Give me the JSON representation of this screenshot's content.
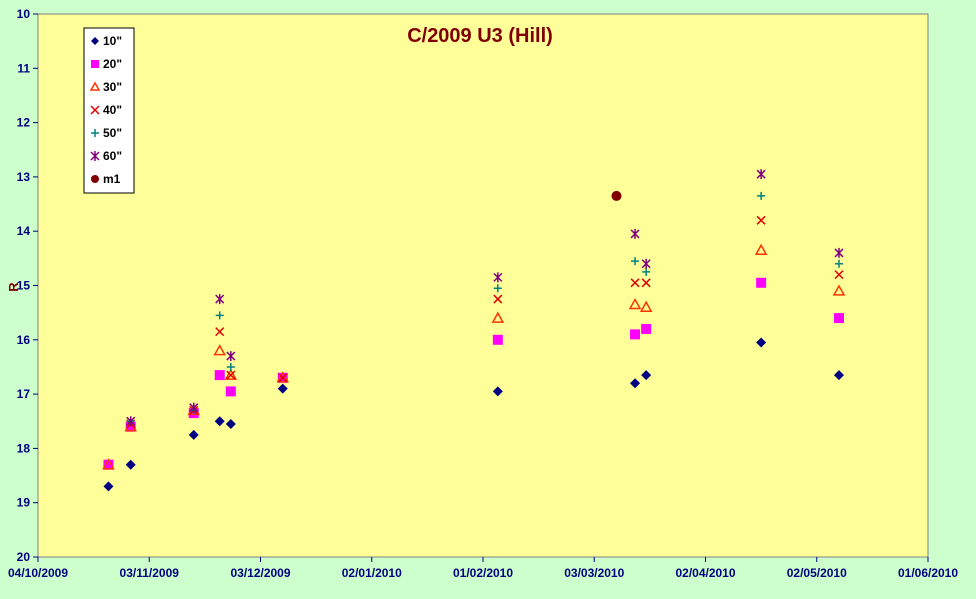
{
  "chart_data": {
    "type": "scatter",
    "title": "C/2009 U3 (Hill)",
    "xlabel": "",
    "ylabel": "R",
    "ylim": [
      10,
      20
    ],
    "y_inverted": true,
    "y_ticks": [
      "10",
      "11",
      "12",
      "13",
      "14",
      "15",
      "16",
      "17",
      "18",
      "19",
      "20"
    ],
    "x_ticks": [
      "04/10/2009",
      "03/11/2009",
      "03/12/2009",
      "02/01/2010",
      "01/02/2010",
      "03/03/2010",
      "02/04/2010",
      "02/05/2010",
      "01/06/2010"
    ],
    "xlim": [
      "2009-10-04",
      "2010-06-01"
    ],
    "legend_position": "top-left",
    "grid": false,
    "plot_background": "#ffff99",
    "page_background": "#ccffcc",
    "series": [
      {
        "name": "10\"",
        "marker": "diamond",
        "color": "#000080",
        "points": [
          [
            "2009-10-23",
            18.7
          ],
          [
            "2009-10-29",
            18.3
          ],
          [
            "2009-11-15",
            17.75
          ],
          [
            "2009-11-22",
            17.5
          ],
          [
            "2009-11-25",
            17.55
          ],
          [
            "2009-12-09",
            16.9
          ],
          [
            "2010-02-05",
            16.95
          ],
          [
            "2010-03-14",
            16.8
          ],
          [
            "2010-03-17",
            16.65
          ],
          [
            "2010-04-17",
            16.05
          ],
          [
            "2010-05-08",
            16.65
          ]
        ]
      },
      {
        "name": "20\"",
        "marker": "square",
        "color": "#ff00ff",
        "points": [
          [
            "2009-10-23",
            18.3
          ],
          [
            "2009-10-29",
            17.6
          ],
          [
            "2009-11-15",
            17.35
          ],
          [
            "2009-11-22",
            16.65
          ],
          [
            "2009-11-25",
            16.95
          ],
          [
            "2009-12-09",
            16.7
          ],
          [
            "2010-02-05",
            16.0
          ],
          [
            "2010-03-14",
            15.9
          ],
          [
            "2010-03-17",
            15.8
          ],
          [
            "2010-04-17",
            14.95
          ],
          [
            "2010-05-08",
            15.6
          ]
        ]
      },
      {
        "name": "30\"",
        "marker": "triangle",
        "color": "#ff3300",
        "points": [
          [
            "2009-10-23",
            18.3
          ],
          [
            "2009-10-29",
            17.6
          ],
          [
            "2009-11-15",
            17.3
          ],
          [
            "2009-11-22",
            16.2
          ],
          [
            "2009-11-25",
            16.65
          ],
          [
            "2009-12-09",
            16.7
          ],
          [
            "2010-02-05",
            15.6
          ],
          [
            "2010-03-14",
            15.35
          ],
          [
            "2010-03-17",
            15.4
          ],
          [
            "2010-04-17",
            14.35
          ],
          [
            "2010-05-08",
            15.1
          ]
        ]
      },
      {
        "name": "40\"",
        "marker": "x",
        "color": "#dd0000",
        "points": [
          [
            "2009-10-29",
            17.55
          ],
          [
            "2009-11-15",
            17.3
          ],
          [
            "2009-11-22",
            15.85
          ],
          [
            "2009-11-25",
            16.65
          ],
          [
            "2009-12-09",
            16.7
          ],
          [
            "2010-02-05",
            15.25
          ],
          [
            "2010-03-14",
            14.95
          ],
          [
            "2010-03-17",
            14.95
          ],
          [
            "2010-04-17",
            13.8
          ],
          [
            "2010-05-08",
            14.8
          ]
        ]
      },
      {
        "name": "50\"",
        "marker": "plus",
        "color": "#008080",
        "points": [
          [
            "2009-10-29",
            17.5
          ],
          [
            "2009-11-15",
            17.3
          ],
          [
            "2009-11-22",
            15.55
          ],
          [
            "2009-11-25",
            16.5
          ],
          [
            "2010-02-05",
            15.05
          ],
          [
            "2010-03-14",
            14.55
          ],
          [
            "2010-03-17",
            14.75
          ],
          [
            "2010-04-17",
            13.35
          ],
          [
            "2010-05-08",
            14.6
          ]
        ]
      },
      {
        "name": "60\"",
        "marker": "star",
        "color": "#800080",
        "points": [
          [
            "2009-10-29",
            17.5
          ],
          [
            "2009-11-15",
            17.25
          ],
          [
            "2009-11-22",
            15.25
          ],
          [
            "2009-11-25",
            16.3
          ],
          [
            "2010-02-05",
            14.85
          ],
          [
            "2010-03-14",
            14.05
          ],
          [
            "2010-03-17",
            14.6
          ],
          [
            "2010-04-17",
            12.95
          ],
          [
            "2010-05-08",
            14.4
          ]
        ]
      },
      {
        "name": "m1",
        "marker": "circle",
        "color": "#800000",
        "points": [
          [
            "2010-03-09",
            13.35
          ]
        ]
      }
    ]
  }
}
